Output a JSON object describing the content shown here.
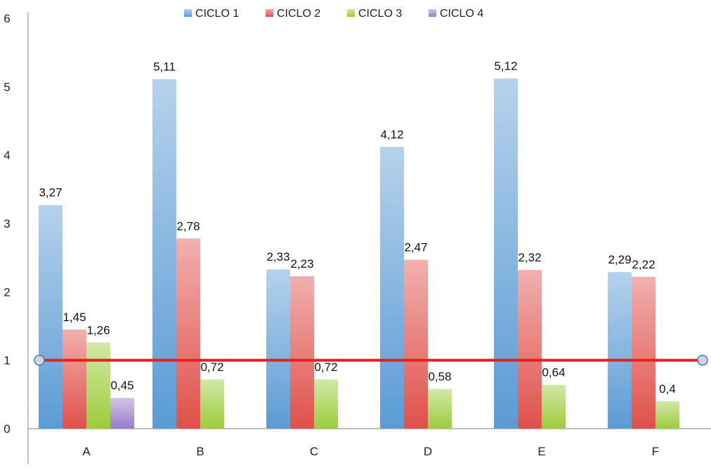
{
  "chart_data": {
    "type": "bar",
    "categories": [
      "A",
      "B",
      "C",
      "D",
      "E",
      "F"
    ],
    "series": [
      {
        "name": "CICLO 1",
        "values": [
          3.27,
          5.11,
          2.33,
          4.12,
          5.12,
          2.29
        ],
        "labels": [
          "3,27",
          "5,11",
          "2,33",
          "4,12",
          "5,12",
          "2,29"
        ],
        "color": "#5b9bd5"
      },
      {
        "name": "CICLO 2",
        "values": [
          1.45,
          2.78,
          2.23,
          2.47,
          2.32,
          2.22
        ],
        "labels": [
          "1,45",
          "2,78",
          "2,23",
          "2,47",
          "2,32",
          "2,22"
        ],
        "color": "#e0504a"
      },
      {
        "name": "CICLO 3",
        "values": [
          1.26,
          0.72,
          0.72,
          0.58,
          0.64,
          0.4
        ],
        "labels": [
          "1,26",
          "0,72",
          "0,72",
          "0,58",
          "0,64",
          "0,4"
        ],
        "color": "#9ccc3c"
      },
      {
        "name": "CICLO 4",
        "values": [
          0.45,
          null,
          null,
          null,
          null,
          null
        ],
        "labels": [
          "0,45",
          "",
          "",
          "",
          "",
          ""
        ],
        "color": "#9a7cc9"
      }
    ],
    "reference_line": {
      "value": 1,
      "color": "#ee1c1c"
    },
    "ylim": [
      0,
      6
    ],
    "yticks": [
      "0",
      "1",
      "2",
      "3",
      "4",
      "5",
      "6"
    ],
    "title": "",
    "xlabel": "",
    "ylabel": "",
    "legend_position": "top"
  }
}
